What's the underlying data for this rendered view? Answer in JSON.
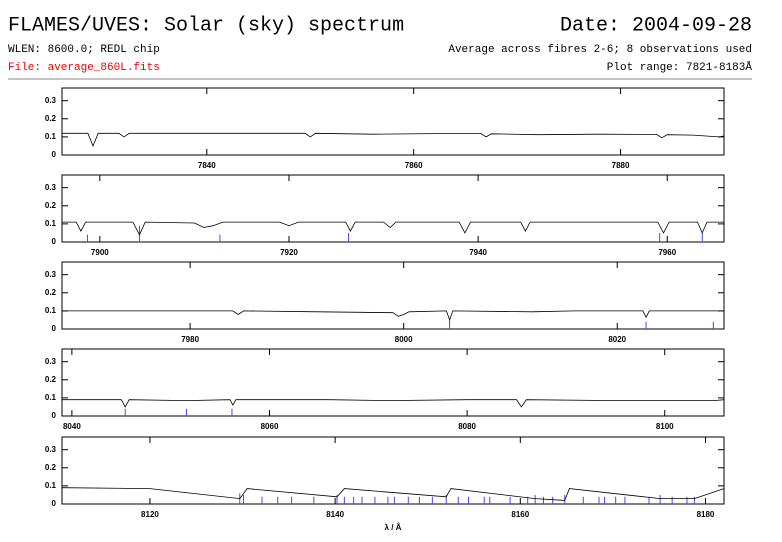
{
  "header": {
    "title": "FLAMES/UVES: Solar (sky) spectrum",
    "date": "Date: 2004-09-28",
    "wlen": "WLEN: 8600.0; REDL chip",
    "average": "Average across fibres 2-6; 8 observations used",
    "file": "File: average_860L.fits",
    "range": "Plot range: 7821-8183Å"
  },
  "chart_data": [
    {
      "type": "line",
      "xlim": [
        7826,
        7890
      ],
      "xticks": [
        7840,
        7860,
        7880
      ],
      "ylim": [
        0,
        0.37
      ],
      "yticks": [
        0,
        0.1,
        0.2,
        0.3
      ],
      "x": [
        7826,
        7828.5,
        7829,
        7829.5,
        7831.5,
        7832,
        7832.5,
        7840,
        7849.5,
        7850,
        7850.5,
        7856,
        7862,
        7866.5,
        7867,
        7867.5,
        7872,
        7878,
        7883.5,
        7884,
        7884.5,
        7887,
        7889.5,
        7890
      ],
      "series": [
        {
          "color": "#000000",
          "values": [
            0.12,
            0.12,
            0.05,
            0.12,
            0.12,
            0.1,
            0.12,
            0.12,
            0.12,
            0.1,
            0.12,
            0.115,
            0.118,
            0.118,
            0.1,
            0.117,
            0.112,
            0.115,
            0.113,
            0.095,
            0.112,
            0.11,
            0.1,
            0.105
          ]
        }
      ]
    },
    {
      "type": "line",
      "xlim": [
        7896,
        7966
      ],
      "xticks": [
        7900,
        7920,
        7940,
        7960
      ],
      "ylim": [
        0,
        0.37
      ],
      "yticks": [
        0,
        0.1,
        0.2,
        0.3
      ],
      "x": [
        7896,
        7897.5,
        7898,
        7898.5,
        7903.5,
        7904.2,
        7904.8,
        7910,
        7911,
        7912,
        7913,
        7919,
        7920,
        7921,
        7926,
        7926.5,
        7927,
        7930,
        7930.7,
        7931.3,
        7938,
        7938.6,
        7939.2,
        7944.5,
        7945,
        7945.5,
        7952,
        7959,
        7959.6,
        7960.2,
        7963.2,
        7963.7,
        7964.2,
        7966
      ],
      "series": [
        {
          "color": "#000000",
          "values": [
            0.11,
            0.11,
            0.06,
            0.11,
            0.11,
            0.04,
            0.11,
            0.105,
            0.08,
            0.09,
            0.11,
            0.11,
            0.09,
            0.11,
            0.11,
            0.06,
            0.11,
            0.11,
            0.08,
            0.11,
            0.11,
            0.05,
            0.11,
            0.11,
            0.06,
            0.11,
            0.11,
            0.11,
            0.05,
            0.11,
            0.11,
            0.05,
            0.11,
            0.11
          ]
        }
      ],
      "marker_lines": {
        "color": "#4444ff",
        "x": [
          7898.7,
          7904.2,
          7912.7,
          7926.3,
          7959.2,
          7963.7
        ],
        "values": [
          0.04,
          0.09,
          0.04,
          0.05,
          0.05,
          0.05
        ]
      }
    },
    {
      "type": "line",
      "xlim": [
        7968,
        8030
      ],
      "xticks": [
        7980,
        8000,
        8020
      ],
      "ylim": [
        0,
        0.37
      ],
      "yticks": [
        0,
        0.1,
        0.2,
        0.3
      ],
      "x": [
        7968,
        7975,
        7984,
        7984.5,
        7985,
        7992,
        7999,
        7999.5,
        8000,
        8000.5,
        8004,
        8004.3,
        8004.6,
        8012,
        8016,
        8022.4,
        8022.7,
        8023,
        8029,
        8030
      ],
      "series": [
        {
          "color": "#000000",
          "values": [
            0.1,
            0.1,
            0.1,
            0.08,
            0.1,
            0.095,
            0.09,
            0.07,
            0.08,
            0.095,
            0.1,
            0.05,
            0.1,
            0.095,
            0.1,
            0.1,
            0.065,
            0.1,
            0.1,
            0.1
          ]
        }
      ],
      "marker_lines": {
        "color": "#4444ff",
        "x": [
          8004.3,
          8022.7,
          8029
        ],
        "values": [
          0.06,
          0.04,
          0.04
        ]
      }
    },
    {
      "type": "line",
      "xlim": [
        8039,
        8106
      ],
      "xticks": [
        8040,
        8060,
        8080,
        8100
      ],
      "ylim": [
        0,
        0.37
      ],
      "yticks": [
        0,
        0.1,
        0.2,
        0.3
      ],
      "x": [
        8039,
        8045,
        8045.4,
        8045.8,
        8051.6,
        8056,
        8056.3,
        8056.6,
        8066,
        8072,
        8080,
        8085,
        8085.5,
        8086,
        8095,
        8105,
        8106
      ],
      "series": [
        {
          "color": "#000000",
          "values": [
            0.09,
            0.09,
            0.05,
            0.09,
            0.085,
            0.09,
            0.06,
            0.09,
            0.09,
            0.085,
            0.09,
            0.09,
            0.05,
            0.09,
            0.085,
            0.085,
            0.09
          ]
        }
      ],
      "marker_lines": {
        "color": "#4444ff",
        "x": [
          8045.4,
          8051.6,
          8056.2
        ],
        "values": [
          0.04,
          0.04,
          0.04
        ]
      }
    },
    {
      "type": "line",
      "xlim": [
        8110.5,
        8182
      ],
      "xticks": [
        8120,
        8140,
        8160,
        8180
      ],
      "ylim": [
        0,
        0.37
      ],
      "yticks": [
        0,
        0.1,
        0.2,
        0.3
      ],
      "xlabel": "λ / Å",
      "x": [
        8110.5,
        8120,
        8129.7,
        8130.5,
        8140.2,
        8141,
        8152,
        8152.5,
        8161.6,
        8164.8,
        8165.3,
        8175.1,
        8178.8,
        8182
      ],
      "series": [
        {
          "color": "#000000",
          "values": [
            0.09,
            0.085,
            0.03,
            0.085,
            0.04,
            0.085,
            0.04,
            0.085,
            0.03,
            0.02,
            0.085,
            0.03,
            0.03,
            0.085
          ]
        }
      ],
      "marker_lines": {
        "color": "#4444ff",
        "x": [
          8129.7,
          8130.1,
          8132.1,
          8133.8,
          8135.3,
          8137.7,
          8140.2,
          8141,
          8142,
          8142.9,
          8144.3,
          8145.7,
          8146.4,
          8147.9,
          8149.1,
          8150.5,
          8152,
          8153.3,
          8154.4,
          8156.1,
          8156.7,
          8158.9,
          8160.8,
          8161.6,
          8162.5,
          8163.5,
          8164.8,
          8166.8,
          8168.5,
          8169.1,
          8170.3,
          8171.3,
          8173.9,
          8175.1,
          8176.4,
          8178,
          8178.8
        ],
        "values": [
          0.06,
          0.05,
          0.04,
          0.04,
          0.04,
          0.04,
          0.05,
          0.04,
          0.04,
          0.04,
          0.04,
          0.04,
          0.04,
          0.04,
          0.04,
          0.04,
          0.05,
          0.04,
          0.04,
          0.04,
          0.04,
          0.04,
          0.04,
          0.05,
          0.04,
          0.04,
          0.05,
          0.04,
          0.04,
          0.04,
          0.04,
          0.04,
          0.04,
          0.05,
          0.04,
          0.04,
          0.04
        ]
      }
    }
  ]
}
